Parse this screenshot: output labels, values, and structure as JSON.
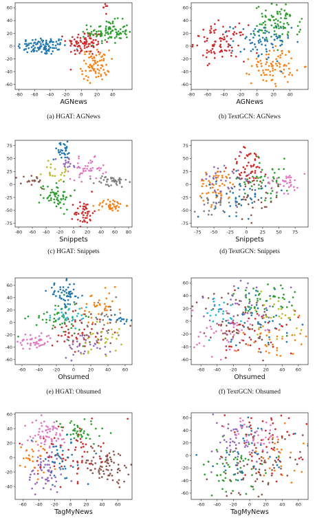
{
  "palette": [
    "#1f77b4",
    "#ff7f0e",
    "#2ca02c",
    "#d62728",
    "#9467bd",
    "#8c564b",
    "#e377c2",
    "#7f7f7f",
    "#bcbd22",
    "#17becf"
  ],
  "chart_data": [
    {
      "id": "agnews-hgat",
      "type": "scatter",
      "caption": "(a)  HGAT: AGNews",
      "xlabel": "AGNews",
      "xlim": [
        -85,
        65
      ],
      "ylim": [
        -68,
        68
      ],
      "xticks": [
        -80,
        -60,
        -40,
        -20,
        0,
        20,
        40
      ],
      "yticks": [
        -60,
        -40,
        -20,
        0,
        20,
        40,
        60
      ],
      "clusters": [
        {
          "c": 0,
          "cx": -50,
          "cy": 0,
          "sx": 16,
          "sy": 7,
          "n": 110
        },
        {
          "c": 3,
          "cx": 5,
          "cy": 5,
          "sx": 12,
          "sy": 10,
          "n": 90
        },
        {
          "c": 2,
          "cx": 35,
          "cy": 22,
          "sx": 13,
          "sy": 9,
          "n": 100
        },
        {
          "c": 1,
          "cx": 18,
          "cy": -30,
          "sx": 9,
          "sy": 12,
          "n": 80
        },
        {
          "c": 3,
          "cx": 30,
          "cy": 62,
          "sx": 2,
          "sy": 4,
          "n": 6
        }
      ]
    },
    {
      "id": "agnews-textgcn",
      "type": "scatter",
      "caption": "(b)  TextGCN: AGNews",
      "xlabel": "AGNews",
      "xlim": [
        -80,
        62
      ],
      "ylim": [
        -68,
        68
      ],
      "xticks": [
        -80,
        -60,
        -40,
        -20,
        0,
        20,
        40
      ],
      "yticks": [
        -60,
        -40,
        -20,
        0,
        20,
        40,
        60
      ],
      "clusters": [
        {
          "c": 3,
          "cx": -45,
          "cy": 5,
          "sx": 16,
          "sy": 14,
          "n": 90
        },
        {
          "c": 2,
          "cx": 25,
          "cy": 35,
          "sx": 14,
          "sy": 15,
          "n": 90
        },
        {
          "c": 1,
          "cx": 20,
          "cy": -30,
          "sx": 13,
          "sy": 15,
          "n": 80
        },
        {
          "c": 0,
          "cx": 5,
          "cy": 5,
          "sx": 18,
          "sy": 15,
          "n": 70
        }
      ]
    },
    {
      "id": "snippets-hgat",
      "type": "scatter",
      "caption": "(c)  HGAT: Snippets",
      "xlabel": "Snippets",
      "xlim": [
        -85,
        85
      ],
      "ylim": [
        -82,
        85
      ],
      "xticks": [
        -80,
        -60,
        -40,
        -20,
        0,
        20,
        40,
        60,
        80
      ],
      "yticks": [
        -75,
        -50,
        -25,
        0,
        25,
        50,
        75
      ],
      "clusters": [
        {
          "c": 0,
          "cx": -15,
          "cy": 65,
          "sx": 8,
          "sy": 8,
          "n": 30
        },
        {
          "c": 6,
          "cx": 20,
          "cy": 30,
          "sx": 12,
          "sy": 10,
          "n": 45
        },
        {
          "c": 7,
          "cx": 55,
          "cy": 5,
          "sx": 12,
          "sy": 6,
          "n": 40
        },
        {
          "c": 2,
          "cx": -25,
          "cy": -20,
          "sx": 12,
          "sy": 14,
          "n": 60
        },
        {
          "c": 3,
          "cx": 15,
          "cy": -55,
          "sx": 7,
          "sy": 12,
          "n": 45
        },
        {
          "c": 1,
          "cx": 55,
          "cy": -40,
          "sx": 10,
          "sy": 6,
          "n": 40
        },
        {
          "c": 5,
          "cx": -60,
          "cy": 5,
          "sx": 10,
          "sy": 7,
          "n": 20
        },
        {
          "c": 8,
          "cx": -25,
          "cy": 25,
          "sx": 10,
          "sy": 10,
          "n": 20
        },
        {
          "c": 4,
          "cx": -10,
          "cy": 40,
          "sx": 8,
          "sy": 8,
          "n": 15
        }
      ]
    },
    {
      "id": "snippets-textgcn",
      "type": "scatter",
      "caption": "(d)  TextGCN: Snippets",
      "xlabel": "Snippets",
      "xlim": [
        -85,
        95
      ],
      "ylim": [
        -82,
        85
      ],
      "xticks": [
        -75,
        -50,
        -25,
        0,
        25,
        50,
        75
      ],
      "yticks": [
        -75,
        -50,
        -25,
        0,
        25,
        50,
        75
      ],
      "clusters": [
        {
          "c": 3,
          "cx": 5,
          "cy": 35,
          "sx": 15,
          "sy": 18,
          "n": 55
        },
        {
          "c": 1,
          "cx": -45,
          "cy": -5,
          "sx": 15,
          "sy": 18,
          "n": 55
        },
        {
          "c": 2,
          "cx": 30,
          "cy": 10,
          "sx": 20,
          "sy": 20,
          "n": 50
        },
        {
          "c": 6,
          "cx": 60,
          "cy": 5,
          "sx": 15,
          "sy": 10,
          "n": 35
        },
        {
          "c": 0,
          "cx": -10,
          "cy": -20,
          "sx": 20,
          "sy": 20,
          "n": 45
        },
        {
          "c": 4,
          "cx": -30,
          "cy": 10,
          "sx": 20,
          "sy": 20,
          "n": 35
        },
        {
          "c": 5,
          "cx": 10,
          "cy": -30,
          "sx": 20,
          "sy": 20,
          "n": 30
        },
        {
          "c": 7,
          "cx": -50,
          "cy": -35,
          "sx": 15,
          "sy": 15,
          "n": 25
        }
      ]
    },
    {
      "id": "ohsumed-hgat",
      "type": "scatter",
      "caption": "(e)  HGAT: Ohsumed",
      "xlabel": "Ohsumed",
      "xlim": [
        -68,
        68
      ],
      "ylim": [
        -68,
        72
      ],
      "xticks": [
        -60,
        -40,
        -20,
        0,
        20,
        40,
        60
      ],
      "yticks": [
        -60,
        -40,
        -20,
        0,
        20,
        40,
        60
      ],
      "clusters": [
        {
          "c": 0,
          "cx": -10,
          "cy": 45,
          "sx": 10,
          "sy": 10,
          "n": 55
        },
        {
          "c": 6,
          "cx": -45,
          "cy": -30,
          "sx": 10,
          "sy": 7,
          "n": 45
        },
        {
          "c": 2,
          "cx": -20,
          "cy": 5,
          "sx": 15,
          "sy": 15,
          "n": 45
        },
        {
          "c": 3,
          "cx": 5,
          "cy": -15,
          "sx": 15,
          "sy": 15,
          "n": 40
        },
        {
          "c": 1,
          "cx": 30,
          "cy": 20,
          "sx": 12,
          "sy": 15,
          "n": 35
        },
        {
          "c": 4,
          "cx": 15,
          "cy": -35,
          "sx": 15,
          "sy": 10,
          "n": 35
        },
        {
          "c": 9,
          "cx": -5,
          "cy": 10,
          "sx": 12,
          "sy": 8,
          "n": 25
        },
        {
          "c": 5,
          "cx": 20,
          "cy": -5,
          "sx": 18,
          "sy": 15,
          "n": 30
        },
        {
          "c": 8,
          "cx": 30,
          "cy": -25,
          "sx": 12,
          "sy": 15,
          "n": 25
        },
        {
          "c": 7,
          "cx": 40,
          "cy": 5,
          "sx": 15,
          "sy": 15,
          "n": 20
        },
        {
          "c": 0,
          "cx": 55,
          "cy": 5,
          "sx": 6,
          "sy": 3,
          "n": 15
        }
      ]
    },
    {
      "id": "ohsumed-textgcn",
      "type": "scatter",
      "caption": "(f)  TextGCN: Ohsumed",
      "xlabel": "Ohsumed",
      "xlim": [
        -72,
        72
      ],
      "ylim": [
        -68,
        68
      ],
      "xticks": [
        -60,
        -40,
        -20,
        0,
        20,
        40,
        60
      ],
      "yticks": [
        -60,
        -40,
        -20,
        0,
        20,
        40,
        60
      ],
      "clusters": [
        {
          "c": 5,
          "cx": -20,
          "cy": 0,
          "sx": 25,
          "sy": 25,
          "n": 60
        },
        {
          "c": 0,
          "cx": 10,
          "cy": 10,
          "sx": 25,
          "sy": 25,
          "n": 45
        },
        {
          "c": 2,
          "cx": 20,
          "cy": 30,
          "sx": 20,
          "sy": 20,
          "n": 45
        },
        {
          "c": 6,
          "cx": -30,
          "cy": -20,
          "sx": 20,
          "sy": 20,
          "n": 40
        },
        {
          "c": 3,
          "cx": 10,
          "cy": -20,
          "sx": 25,
          "sy": 25,
          "n": 40
        },
        {
          "c": 1,
          "cx": 30,
          "cy": -30,
          "sx": 20,
          "sy": 20,
          "n": 35
        },
        {
          "c": 4,
          "cx": -10,
          "cy": 30,
          "sx": 25,
          "sy": 20,
          "n": 35
        },
        {
          "c": 8,
          "cx": 40,
          "cy": 10,
          "sx": 20,
          "sy": 20,
          "n": 25
        },
        {
          "c": 9,
          "cx": -40,
          "cy": 10,
          "sx": 15,
          "sy": 15,
          "n": 20
        }
      ]
    },
    {
      "id": "tagmynews-hgat",
      "type": "scatter",
      "caption": "",
      "xlabel": "TagMyNews",
      "xlim": [
        -70,
        78
      ],
      "ylim": [
        -58,
        62
      ],
      "xticks": [
        -60,
        -40,
        -20,
        0,
        20,
        40,
        60
      ],
      "yticks": [
        -40,
        -20,
        0,
        20,
        40,
        60
      ],
      "clusters": [
        {
          "c": 6,
          "cx": -30,
          "cy": 30,
          "sx": 15,
          "sy": 12,
          "n": 70
        },
        {
          "c": 5,
          "cx": 45,
          "cy": -10,
          "sx": 15,
          "sy": 12,
          "n": 80
        },
        {
          "c": 4,
          "cx": -30,
          "cy": -20,
          "sx": 12,
          "sy": 15,
          "n": 60
        },
        {
          "c": 3,
          "cx": 0,
          "cy": 10,
          "sx": 20,
          "sy": 20,
          "n": 60
        },
        {
          "c": 2,
          "cx": 10,
          "cy": 35,
          "sx": 18,
          "sy": 10,
          "n": 40
        },
        {
          "c": 0,
          "cx": -10,
          "cy": -5,
          "sx": 18,
          "sy": 18,
          "n": 35
        },
        {
          "c": 1,
          "cx": -45,
          "cy": 0,
          "sx": 10,
          "sy": 12,
          "n": 25
        }
      ]
    },
    {
      "id": "tagmynews-textgcn",
      "type": "scatter",
      "caption": "",
      "xlabel": "TagMyNews",
      "xlim": [
        -72,
        72
      ],
      "ylim": [
        -70,
        68
      ],
      "xticks": [
        -60,
        -40,
        -20,
        0,
        20,
        40,
        60
      ],
      "yticks": [
        -60,
        -40,
        -20,
        0,
        20,
        40,
        60
      ],
      "clusters": [
        {
          "c": 5,
          "cx": 10,
          "cy": -20,
          "sx": 28,
          "sy": 28,
          "n": 70
        },
        {
          "c": 2,
          "cx": -20,
          "cy": -20,
          "sx": 25,
          "sy": 25,
          "n": 55
        },
        {
          "c": 3,
          "cx": 20,
          "cy": 20,
          "sx": 25,
          "sy": 25,
          "n": 55
        },
        {
          "c": 4,
          "cx": -20,
          "cy": 20,
          "sx": 25,
          "sy": 25,
          "n": 50
        },
        {
          "c": 0,
          "cx": 0,
          "cy": 0,
          "sx": 30,
          "sy": 30,
          "n": 40
        },
        {
          "c": 6,
          "cx": 10,
          "cy": 40,
          "sx": 20,
          "sy": 20,
          "n": 35
        },
        {
          "c": 1,
          "cx": 40,
          "cy": 0,
          "sx": 20,
          "sy": 20,
          "n": 25
        }
      ]
    }
  ]
}
